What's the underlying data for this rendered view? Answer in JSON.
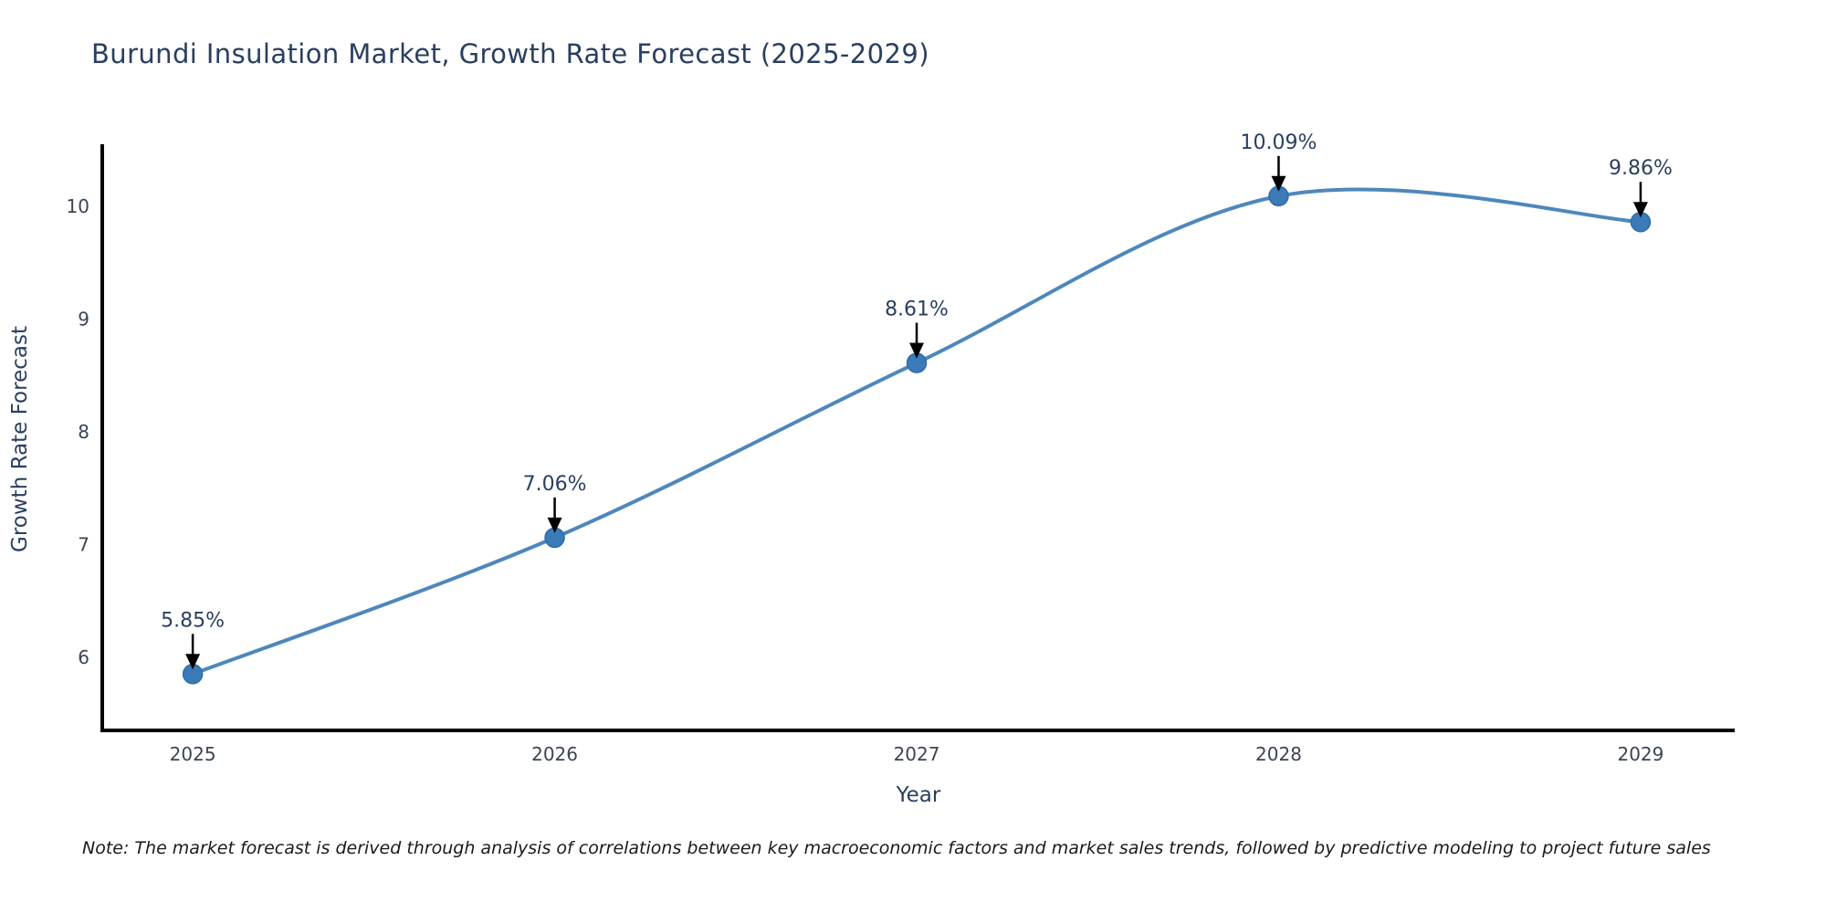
{
  "page": {
    "background": "#ffffff"
  },
  "note": {
    "text": "Note: The market forecast is derived through analysis of correlations between key macroeconomic factors and market sales trends, followed by predictive modeling to project future sales"
  },
  "chart_data": {
    "type": "line",
    "title": "Burundi Insulation Market, Growth Rate Forecast (2025-2029)",
    "xlabel": "Year",
    "ylabel": "Growth Rate Forecast",
    "x": [
      2025,
      2026,
      2027,
      2028,
      2029
    ],
    "categories": [
      "2025",
      "2026",
      "2027",
      "2028",
      "2029"
    ],
    "values": [
      5.85,
      7.06,
      8.61,
      10.09,
      9.86
    ],
    "point_labels": [
      "5.85%",
      "7.06%",
      "8.61%",
      "10.09%",
      "9.86%"
    ],
    "yticks": [
      6,
      7,
      8,
      9,
      10
    ],
    "xlim": [
      2024.75,
      2029.26
    ],
    "ylim": [
      5.35,
      10.55
    ],
    "grid": false,
    "legend": "none",
    "line_style": "spline",
    "marker": "circle",
    "annotation_style": "value-label-with-down-arrow",
    "colors": {
      "line": "#4e87bb",
      "marker": "#3a7bb8",
      "marker_edge": "#2f6da8",
      "title_text": "#2a3f5f",
      "axis_text": "#2a3f5f",
      "tick_text": "#3b4552",
      "annotation_text": "#2a3f5f",
      "annotation_arrow": "#000000",
      "axis_line": "#000000",
      "note_text": "#1a1a1a"
    }
  }
}
